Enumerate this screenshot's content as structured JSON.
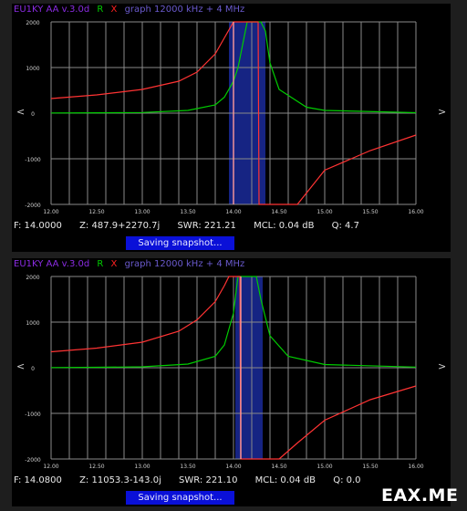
{
  "screens": [
    {
      "header": {
        "device": "EU1KY AA v.3.0d",
        "r_label": "R",
        "x_label": "X",
        "mode": "graph 12000 kHz + 4 MHz"
      },
      "nav": {
        "left": "<",
        "right": ">"
      },
      "status": {
        "freq": "F: 14.0000",
        "z": "Z: 487.9+2270.7j",
        "swr": "SWR: 221.21",
        "mcl": "MCL: 0.04 dB",
        "q": "Q: 4.7"
      },
      "snapshot": "Saving snapshot...",
      "chart_data": {
        "type": "line",
        "x_range": [
          12.0,
          16.0
        ],
        "ylim": [
          -2000,
          2000
        ],
        "x_tick_labels": [
          "12.00",
          "12.50",
          "13.00",
          "13.50",
          "14.00",
          "14.50",
          "15.00",
          "15.50",
          "16.00"
        ],
        "y_tick_labels": [
          "2000",
          "1000",
          "0",
          "-1000",
          "-2000"
        ],
        "marker_freq": 14.0,
        "series": [
          {
            "name": "R",
            "color": "#00cc00",
            "x": [
              12.0,
              12.5,
              13.0,
              13.5,
              13.8,
              13.9,
              14.0,
              14.05,
              14.1,
              14.15,
              14.2,
              14.25,
              14.3,
              14.35,
              14.4,
              14.5,
              14.8,
              15.0,
              16.0
            ],
            "y": [
              5,
              8,
              15,
              60,
              180,
              350,
              700,
              1000,
              1500,
              2000,
              2000,
              2000,
              2000,
              1800,
              1100,
              520,
              130,
              60,
              10
            ]
          },
          {
            "name": "X",
            "color": "#ff3333",
            "x": [
              12.0,
              12.5,
              13.0,
              13.4,
              13.6,
              13.8,
              13.9,
              14.0,
              14.1,
              14.2,
              14.27,
              14.28,
              14.3,
              14.5,
              14.7,
              14.9,
              15.0,
              15.5,
              16.0
            ],
            "y": [
              320,
              400,
              520,
              700,
              900,
              1300,
              1650,
              2000,
              2000,
              2000,
              2000,
              -2000,
              -2000,
              -2000,
              -2000,
              -1500,
              -1250,
              -820,
              -480
            ]
          }
        ],
        "band": [
          13.95,
          14.35
        ]
      }
    },
    {
      "header": {
        "device": "EU1KY AA v.3.0d",
        "r_label": "R",
        "x_label": "X",
        "mode": "graph 12000 kHz + 4 MHz"
      },
      "nav": {
        "left": "<",
        "right": ">"
      },
      "status": {
        "freq": "F: 14.0800",
        "z": "Z: 11053.3-143.0j",
        "swr": "SWR: 221.10",
        "mcl": "MCL: 0.04 dB",
        "q": "Q: 0.0"
      },
      "snapshot": "Saving snapshot...",
      "chart_data": {
        "type": "line",
        "x_range": [
          12.0,
          16.0
        ],
        "ylim": [
          -2000,
          2000
        ],
        "x_tick_labels": [
          "12.00",
          "12.50",
          "13.00",
          "13.50",
          "14.00",
          "14.50",
          "15.00",
          "15.50",
          "16.00"
        ],
        "y_tick_labels": [
          "2000",
          "1000",
          "0",
          "-1000",
          "-2000"
        ],
        "marker_freq": 14.08,
        "series": [
          {
            "name": "R",
            "color": "#00cc00",
            "x": [
              12.0,
              12.5,
              13.0,
              13.5,
              13.8,
              13.9,
              14.0,
              14.03,
              14.05,
              14.1,
              14.15,
              14.2,
              14.25,
              14.3,
              14.4,
              14.6,
              15.0,
              16.0
            ],
            "y": [
              5,
              10,
              20,
              80,
              250,
              500,
              1200,
              1700,
              2000,
              2000,
              2000,
              2000,
              2000,
              1500,
              700,
              250,
              70,
              15
            ]
          },
          {
            "name": "X",
            "color": "#ff3333",
            "x": [
              12.0,
              12.5,
              13.0,
              13.4,
              13.6,
              13.8,
              13.9,
              13.95,
              14.0,
              14.07,
              14.08,
              14.1,
              14.3,
              14.5,
              14.7,
              15.0,
              15.5,
              16.0
            ],
            "y": [
              350,
              430,
              560,
              800,
              1050,
              1450,
              1800,
              2000,
              2000,
              2000,
              -2000,
              -2000,
              -2000,
              -2000,
              -1650,
              -1150,
              -700,
              -400
            ]
          }
        ],
        "band": [
          14.02,
          14.32
        ]
      }
    }
  ],
  "watermark": "EAX.ME"
}
